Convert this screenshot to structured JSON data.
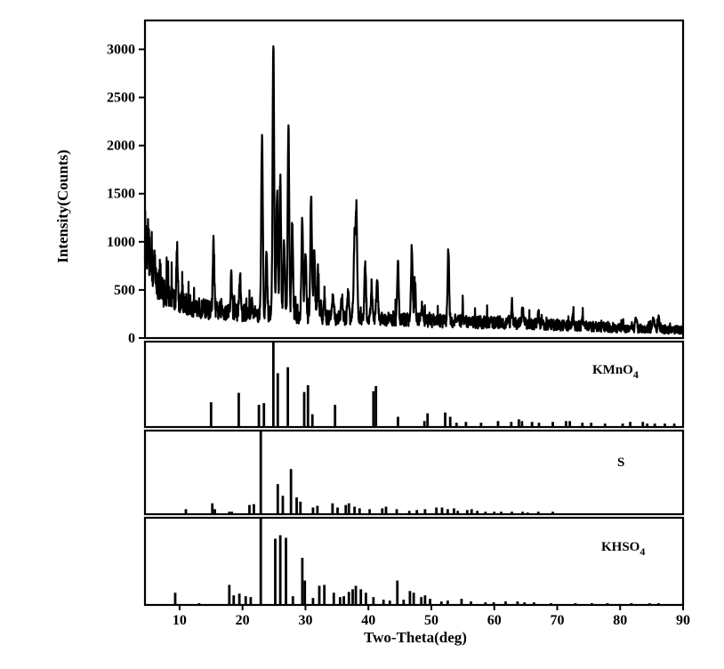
{
  "chart_data": [
    {
      "type": "line",
      "panel": "measured",
      "ylabel": "Intensity(Counts)",
      "ylim": [
        0,
        3300
      ],
      "xlim": [
        4.5,
        90
      ],
      "yticks": [
        0,
        500,
        1000,
        1500,
        2000,
        2500,
        3000
      ],
      "peaks": [
        [
          5.0,
          1000
        ],
        [
          5.4,
          840
        ],
        [
          6.0,
          760
        ],
        [
          9.6,
          830
        ],
        [
          15.4,
          990
        ],
        [
          18.2,
          640
        ],
        [
          19.6,
          640
        ],
        [
          21.5,
          360
        ],
        [
          23.1,
          2140
        ],
        [
          23.8,
          880
        ],
        [
          24.9,
          3100
        ],
        [
          25.5,
          1540
        ],
        [
          26.0,
          1660
        ],
        [
          26.6,
          980
        ],
        [
          27.3,
          2210
        ],
        [
          27.9,
          1180
        ],
        [
          29.5,
          1280
        ],
        [
          30.0,
          940
        ],
        [
          30.9,
          1510
        ],
        [
          31.4,
          960
        ],
        [
          32.0,
          700
        ],
        [
          33.0,
          420
        ],
        [
          34.4,
          450
        ],
        [
          35.8,
          420
        ],
        [
          36.8,
          480
        ],
        [
          37.8,
          1060
        ],
        [
          38.1,
          1340
        ],
        [
          39.5,
          780
        ],
        [
          40.5,
          540
        ],
        [
          41.4,
          630
        ],
        [
          44.7,
          790
        ],
        [
          46.9,
          940
        ],
        [
          47.4,
          560
        ],
        [
          48.5,
          320
        ],
        [
          52.7,
          910
        ],
        [
          55.0,
          260
        ],
        [
          62.8,
          360
        ],
        [
          64.5,
          290
        ],
        [
          67.0,
          270
        ],
        [
          72.5,
          220
        ],
        [
          74.0,
          200
        ],
        [
          82.5,
          200
        ],
        [
          85.3,
          210
        ],
        [
          86.1,
          200
        ]
      ],
      "baseline_samples": [
        [
          4.5,
          1050
        ],
        [
          5.2,
          820
        ],
        [
          6.0,
          640
        ],
        [
          7.0,
          510
        ],
        [
          8.0,
          440
        ],
        [
          10.0,
          370
        ],
        [
          12.0,
          330
        ],
        [
          15.0,
          290
        ],
        [
          20.0,
          260
        ],
        [
          22.0,
          250
        ],
        [
          28.0,
          230
        ],
        [
          35.0,
          210
        ],
        [
          45.0,
          190
        ],
        [
          55.0,
          170
        ],
        [
          65.0,
          150
        ],
        [
          75.0,
          120
        ],
        [
          82.0,
          100
        ],
        [
          90.0,
          85
        ]
      ]
    },
    {
      "type": "bar",
      "panel": "reference",
      "label": "KMnO",
      "label_sub": "4",
      "ylim": [
        0,
        100
      ],
      "x": [
        15.0,
        19.4,
        22.6,
        23.4,
        24.9,
        25.6,
        27.2,
        29.8,
        30.4,
        31.1,
        34.7,
        40.8,
        41.2,
        44.7,
        48.9,
        49.4,
        52.2,
        53.0,
        54.0,
        55.5,
        57.9,
        60.6,
        62.7,
        63.9,
        64.4,
        66.0,
        67.1,
        69.3,
        71.4,
        72.0,
        74.0,
        75.4,
        77.6,
        80.4,
        81.6,
        83.6,
        84.3,
        85.5,
        87.1,
        88.6
      ],
      "values": [
        29,
        40,
        26,
        28,
        100,
        63,
        70,
        41,
        49,
        15,
        26,
        42,
        48,
        12,
        7,
        16,
        17,
        12,
        5,
        6,
        5,
        7,
        6,
        9,
        7,
        6,
        5,
        6,
        7,
        7,
        5,
        5,
        4,
        4,
        6,
        6,
        4,
        4,
        4,
        4
      ]
    },
    {
      "type": "bar",
      "panel": "reference",
      "label": "S",
      "label_sub": "",
      "ylim": [
        0,
        100
      ],
      "x": [
        11.0,
        15.2,
        15.6,
        17.9,
        18.3,
        21.1,
        21.8,
        22.9,
        25.6,
        26.4,
        27.7,
        28.6,
        29.2,
        31.2,
        31.9,
        34.3,
        35.1,
        36.4,
        36.9,
        37.8,
        38.6,
        40.2,
        42.2,
        42.8,
        44.5,
        46.5,
        47.7,
        49.0,
        50.8,
        51.7,
        52.6,
        53.6,
        54.2,
        55.7,
        56.4,
        57.3,
        58.6,
        60.0,
        61.1,
        62.8,
        64.5,
        65.3,
        67.0,
        69.3
      ],
      "values": [
        6,
        13,
        6,
        3,
        3,
        11,
        12,
        100,
        36,
        22,
        54,
        20,
        15,
        8,
        10,
        13,
        8,
        11,
        13,
        9,
        7,
        6,
        7,
        9,
        6,
        4,
        5,
        6,
        8,
        8,
        6,
        7,
        4,
        5,
        6,
        4,
        3,
        3,
        3,
        3,
        3,
        2,
        3,
        3
      ]
    },
    {
      "type": "bar",
      "panel": "reference",
      "label": "KHSO",
      "label_sub": "4",
      "xlabel": "Two-Theta(deg)",
      "ylim": [
        0,
        100
      ],
      "xticks": [
        10,
        20,
        30,
        40,
        50,
        60,
        70,
        80,
        90
      ],
      "x": [
        9.3,
        11.6,
        13.1,
        17.9,
        18.6,
        19.5,
        20.5,
        21.3,
        22.9,
        25.2,
        26.0,
        26.9,
        28.0,
        29.5,
        29.9,
        31.2,
        32.2,
        33.0,
        34.5,
        35.5,
        36.1,
        36.9,
        37.5,
        38.0,
        38.8,
        39.6,
        40.8,
        42.4,
        43.4,
        44.6,
        45.6,
        46.6,
        47.2,
        48.4,
        49.0,
        49.8,
        51.6,
        52.6,
        54.8,
        56.3,
        58.6,
        59.9,
        61.8,
        63.7,
        64.8,
        66.3,
        69.0,
        72.9,
        75.5,
        78.0,
        81.8,
        84.7,
        86.1
      ],
      "values": [
        14,
        1,
        2,
        23,
        11,
        13,
        10,
        9,
        100,
        76,
        80,
        77,
        10,
        54,
        28,
        8,
        22,
        23,
        14,
        9,
        10,
        15,
        18,
        22,
        18,
        14,
        9,
        6,
        5,
        28,
        6,
        16,
        14,
        9,
        11,
        7,
        4,
        5,
        7,
        4,
        3,
        3,
        4,
        4,
        3,
        3,
        2,
        2,
        2,
        2,
        2,
        2,
        2
      ]
    }
  ]
}
